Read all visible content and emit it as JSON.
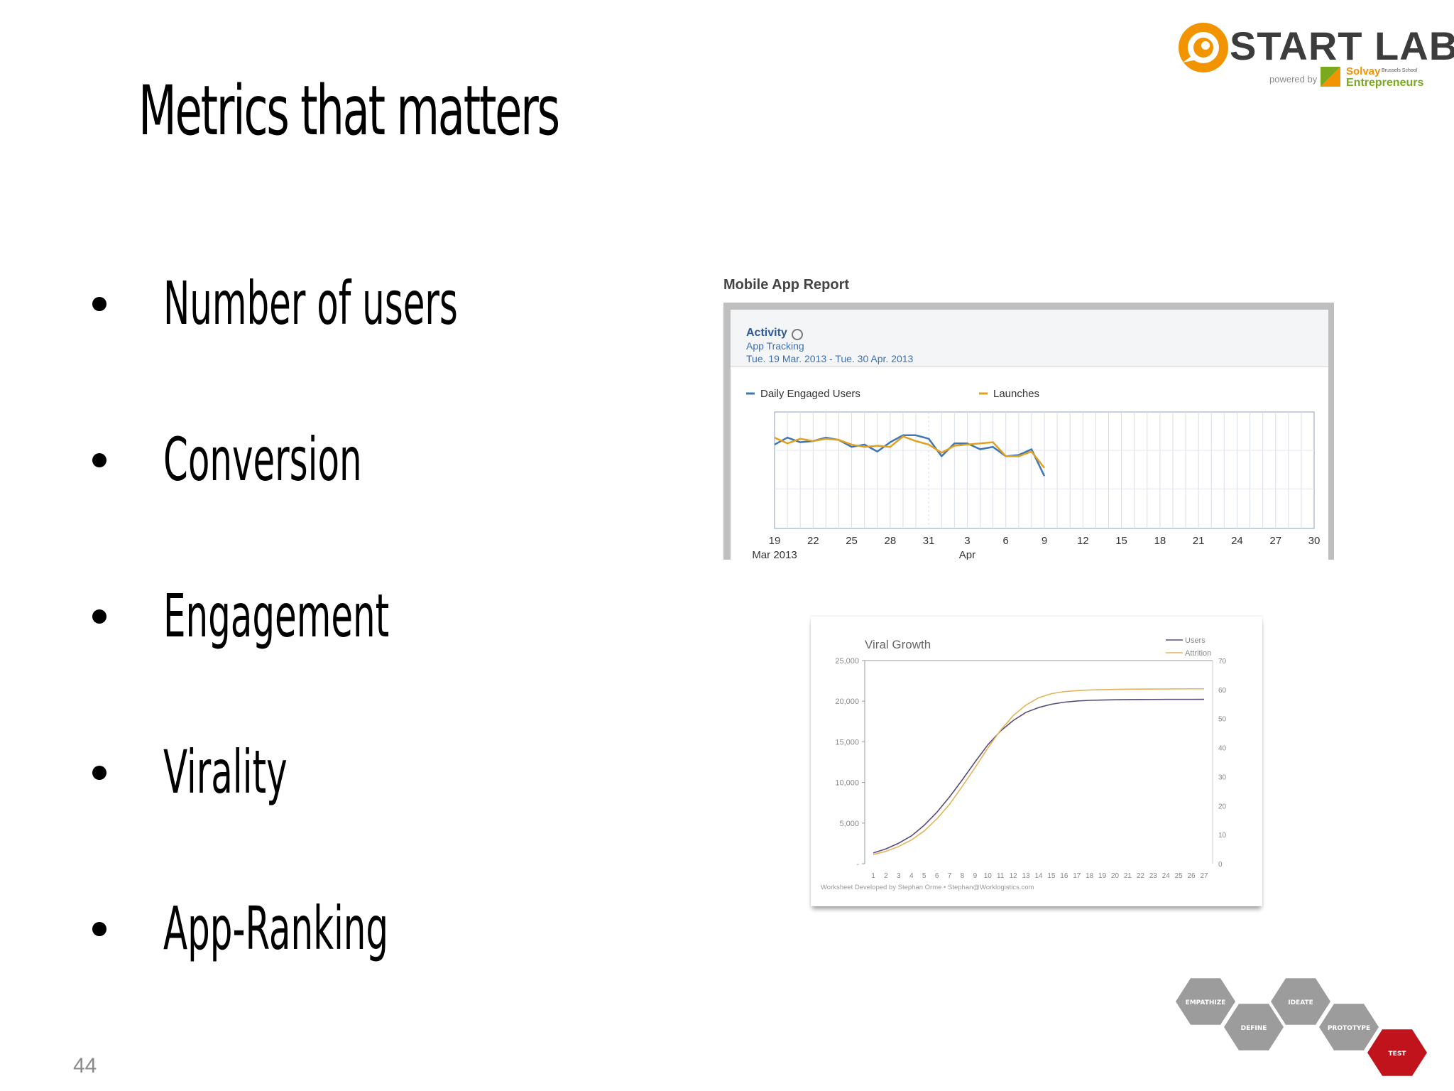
{
  "slide": {
    "title": "Metrics that matters",
    "bullets": [
      "Number of users",
      "Conversion",
      "Engagement",
      "Virality",
      "App-Ranking"
    ],
    "page_number": "44"
  },
  "logo": {
    "name": "START LAB",
    "powered_by": "powered by",
    "partner_name": "Solvay",
    "partner_sub": "Brussels School",
    "partner_line2": "Entrepreneurs",
    "accent": "#f29400"
  },
  "design_thinking": {
    "steps": [
      "Empathize",
      "Define",
      "Ideate",
      "Prototype",
      "Test"
    ],
    "step_color": "#9c9c9c",
    "active_color": "#c0131c"
  },
  "chart_data": [
    {
      "type": "line",
      "title": "Mobile App Report",
      "header": {
        "section": "Activity",
        "subtitle": "App Tracking",
        "date_range": "Tue. 19 Mar. 2013 - Tue. 30 Apr. 2013"
      },
      "x_ticks": [
        "19",
        "22",
        "25",
        "28",
        "31",
        "3",
        "6",
        "9",
        "12",
        "15",
        "18",
        "21",
        "24",
        "27",
        "30"
      ],
      "x_month_labels": [
        "Mar 2013",
        "Apr"
      ],
      "grid": true,
      "series": [
        {
          "name": "Daily Engaged Users",
          "color": "#3f77b5",
          "values": [
            72,
            78,
            74,
            75,
            78,
            76,
            70,
            72,
            66,
            74,
            80,
            80,
            77,
            62,
            73,
            73,
            68,
            70,
            62,
            63,
            68,
            45
          ]
        },
        {
          "name": "Launches",
          "color": "#e0a020",
          "values": [
            78,
            73,
            77,
            75,
            77,
            76,
            72,
            70,
            71,
            70,
            79,
            75,
            72,
            65,
            71,
            72,
            73,
            74,
            62,
            62,
            66,
            52
          ]
        }
      ]
    },
    {
      "type": "line",
      "title": "Viral Growth",
      "x": [
        1,
        2,
        3,
        4,
        5,
        6,
        7,
        8,
        9,
        10,
        11,
        12,
        13,
        14,
        15,
        16,
        17,
        18,
        19,
        20,
        21,
        22,
        23,
        24,
        25,
        26,
        27
      ],
      "y_left_ticks": [
        "25,000",
        "20,000",
        "15,000",
        "10,000",
        "5,000",
        "-"
      ],
      "ylim_left": [
        0,
        25000
      ],
      "y_right_ticks": [
        "70",
        "60",
        "50",
        "40",
        "30",
        "20",
        "10",
        "0"
      ],
      "ylim_right": [
        0,
        70
      ],
      "footer": "Worksheet Developed by Stephan Orme • Stephan@Worklogistics.com",
      "series": [
        {
          "name": "Users",
          "color": "#5a4a7a",
          "values": [
            800,
            1300,
            2000,
            2900,
            4200,
            5800,
            7700,
            9800,
            12000,
            14100,
            15800,
            17100,
            18100,
            18700,
            19100,
            19350,
            19500,
            19580,
            19620,
            19650,
            19670,
            19680,
            19690,
            19700,
            19700,
            19700,
            19710
          ]
        },
        {
          "name": "Attrition",
          "color": "#e3b458",
          "values": [
            600,
            1000,
            1600,
            2400,
            3500,
            5000,
            6800,
            9000,
            11300,
            13700,
            15900,
            17700,
            19000,
            19900,
            20400,
            20650,
            20780,
            20850,
            20900,
            20930,
            20950,
            20960,
            20970,
            20980,
            20990,
            21000,
            21000
          ]
        }
      ]
    }
  ]
}
